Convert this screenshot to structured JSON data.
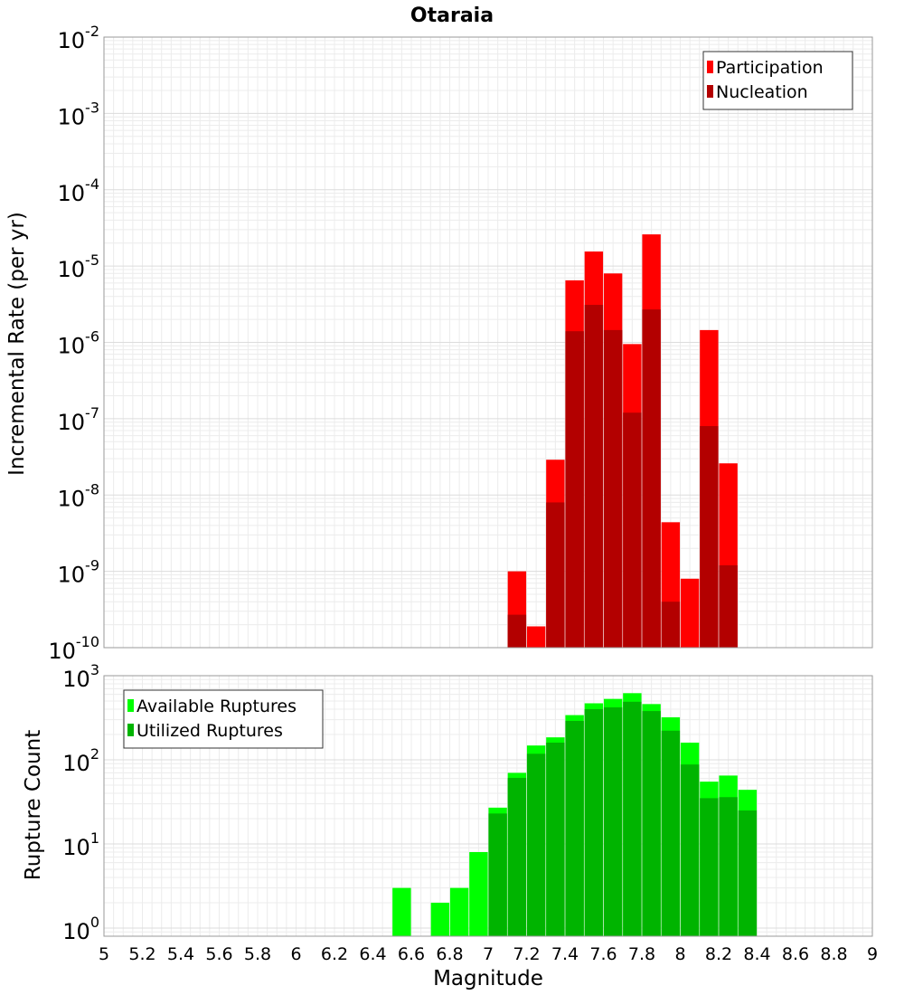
{
  "chart_data": [
    {
      "type": "bar",
      "title": "Otaraia",
      "ylabel": "Incremental Rate (per yr)",
      "xlabel": "",
      "yscale": "log",
      "xlim": [
        5,
        9
      ],
      "ylim": [
        1e-10,
        0.01
      ],
      "y_tick_labels": [
        {
          "base": "10",
          "exp": "-10",
          "value": 1e-10
        },
        {
          "base": "10",
          "exp": "-9",
          "value": 1e-09
        },
        {
          "base": "10",
          "exp": "-8",
          "value": 1e-08
        },
        {
          "base": "10",
          "exp": "-7",
          "value": 1e-07
        },
        {
          "base": "10",
          "exp": "-6",
          "value": 1e-06
        },
        {
          "base": "10",
          "exp": "-5",
          "value": 1e-05
        },
        {
          "base": "10",
          "exp": "-4",
          "value": 0.0001
        },
        {
          "base": "10",
          "exp": "-3",
          "value": 0.001
        },
        {
          "base": "10",
          "exp": "-2",
          "value": 0.01
        }
      ],
      "grid": true,
      "legend_position": "top-right",
      "series": [
        {
          "name": "Participation",
          "color": "#ff0000",
          "x": [
            7.15,
            7.25,
            7.35,
            7.45,
            7.55,
            7.65,
            7.75,
            7.85,
            7.95,
            8.05,
            8.15,
            8.25
          ],
          "values": [
            1e-09,
            1.9e-10,
            2.9e-08,
            6.5e-06,
            1.55e-05,
            8e-06,
            9.5e-07,
            2.6e-05,
            4.4e-09,
            8e-10,
            1.45e-06,
            2.6e-08
          ]
        },
        {
          "name": "Nucleation",
          "color": "#b30000",
          "x": [
            7.15,
            7.35,
            7.45,
            7.55,
            7.65,
            7.75,
            7.85,
            7.95,
            8.15,
            8.25
          ],
          "values": [
            2.7e-10,
            8e-09,
            1.4e-06,
            3.1e-06,
            1.45e-06,
            1.2e-07,
            2.7e-06,
            4e-10,
            8e-08,
            1.2e-09
          ]
        }
      ]
    },
    {
      "type": "bar",
      "title": "",
      "ylabel": "Rupture Count",
      "xlabel": "Magnitude",
      "yscale": "log",
      "xlim": [
        5,
        9
      ],
      "ylim": [
        0.8,
        1000
      ],
      "x_ticks": [
        "5",
        "5.2",
        "5.4",
        "5.6",
        "5.8",
        "6",
        "6.2",
        "6.4",
        "6.6",
        "6.8",
        "7",
        "7.2",
        "7.4",
        "7.6",
        "7.8",
        "8",
        "8.2",
        "8.4",
        "8.6",
        "8.8",
        "9"
      ],
      "y_tick_labels": [
        {
          "base": "10",
          "exp": "0",
          "value": 1
        },
        {
          "base": "10",
          "exp": "1",
          "value": 10
        },
        {
          "base": "10",
          "exp": "2",
          "value": 100
        },
        {
          "base": "10",
          "exp": "3",
          "value": 1000
        }
      ],
      "grid": true,
      "legend_position": "top-left",
      "series": [
        {
          "name": "Available Ruptures",
          "color": "#00ff00",
          "x": [
            6.55,
            6.75,
            6.85,
            6.95,
            7.05,
            7.15,
            7.25,
            7.35,
            7.45,
            7.55,
            7.65,
            7.75,
            7.85,
            7.95,
            8.05,
            8.15,
            8.25,
            8.35
          ],
          "values": [
            3,
            2,
            3,
            8,
            27,
            70,
            148,
            185,
            340,
            470,
            530,
            620,
            460,
            320,
            160,
            55,
            65,
            44
          ]
        },
        {
          "name": "Utilized Ruptures",
          "color": "#00b400",
          "x": [
            7.05,
            7.15,
            7.25,
            7.35,
            7.45,
            7.55,
            7.65,
            7.75,
            7.85,
            7.95,
            8.05,
            8.15,
            8.25,
            8.35
          ],
          "values": [
            23,
            61,
            118,
            160,
            290,
            400,
            420,
            490,
            380,
            222,
            88,
            35,
            36,
            25
          ]
        }
      ]
    }
  ]
}
